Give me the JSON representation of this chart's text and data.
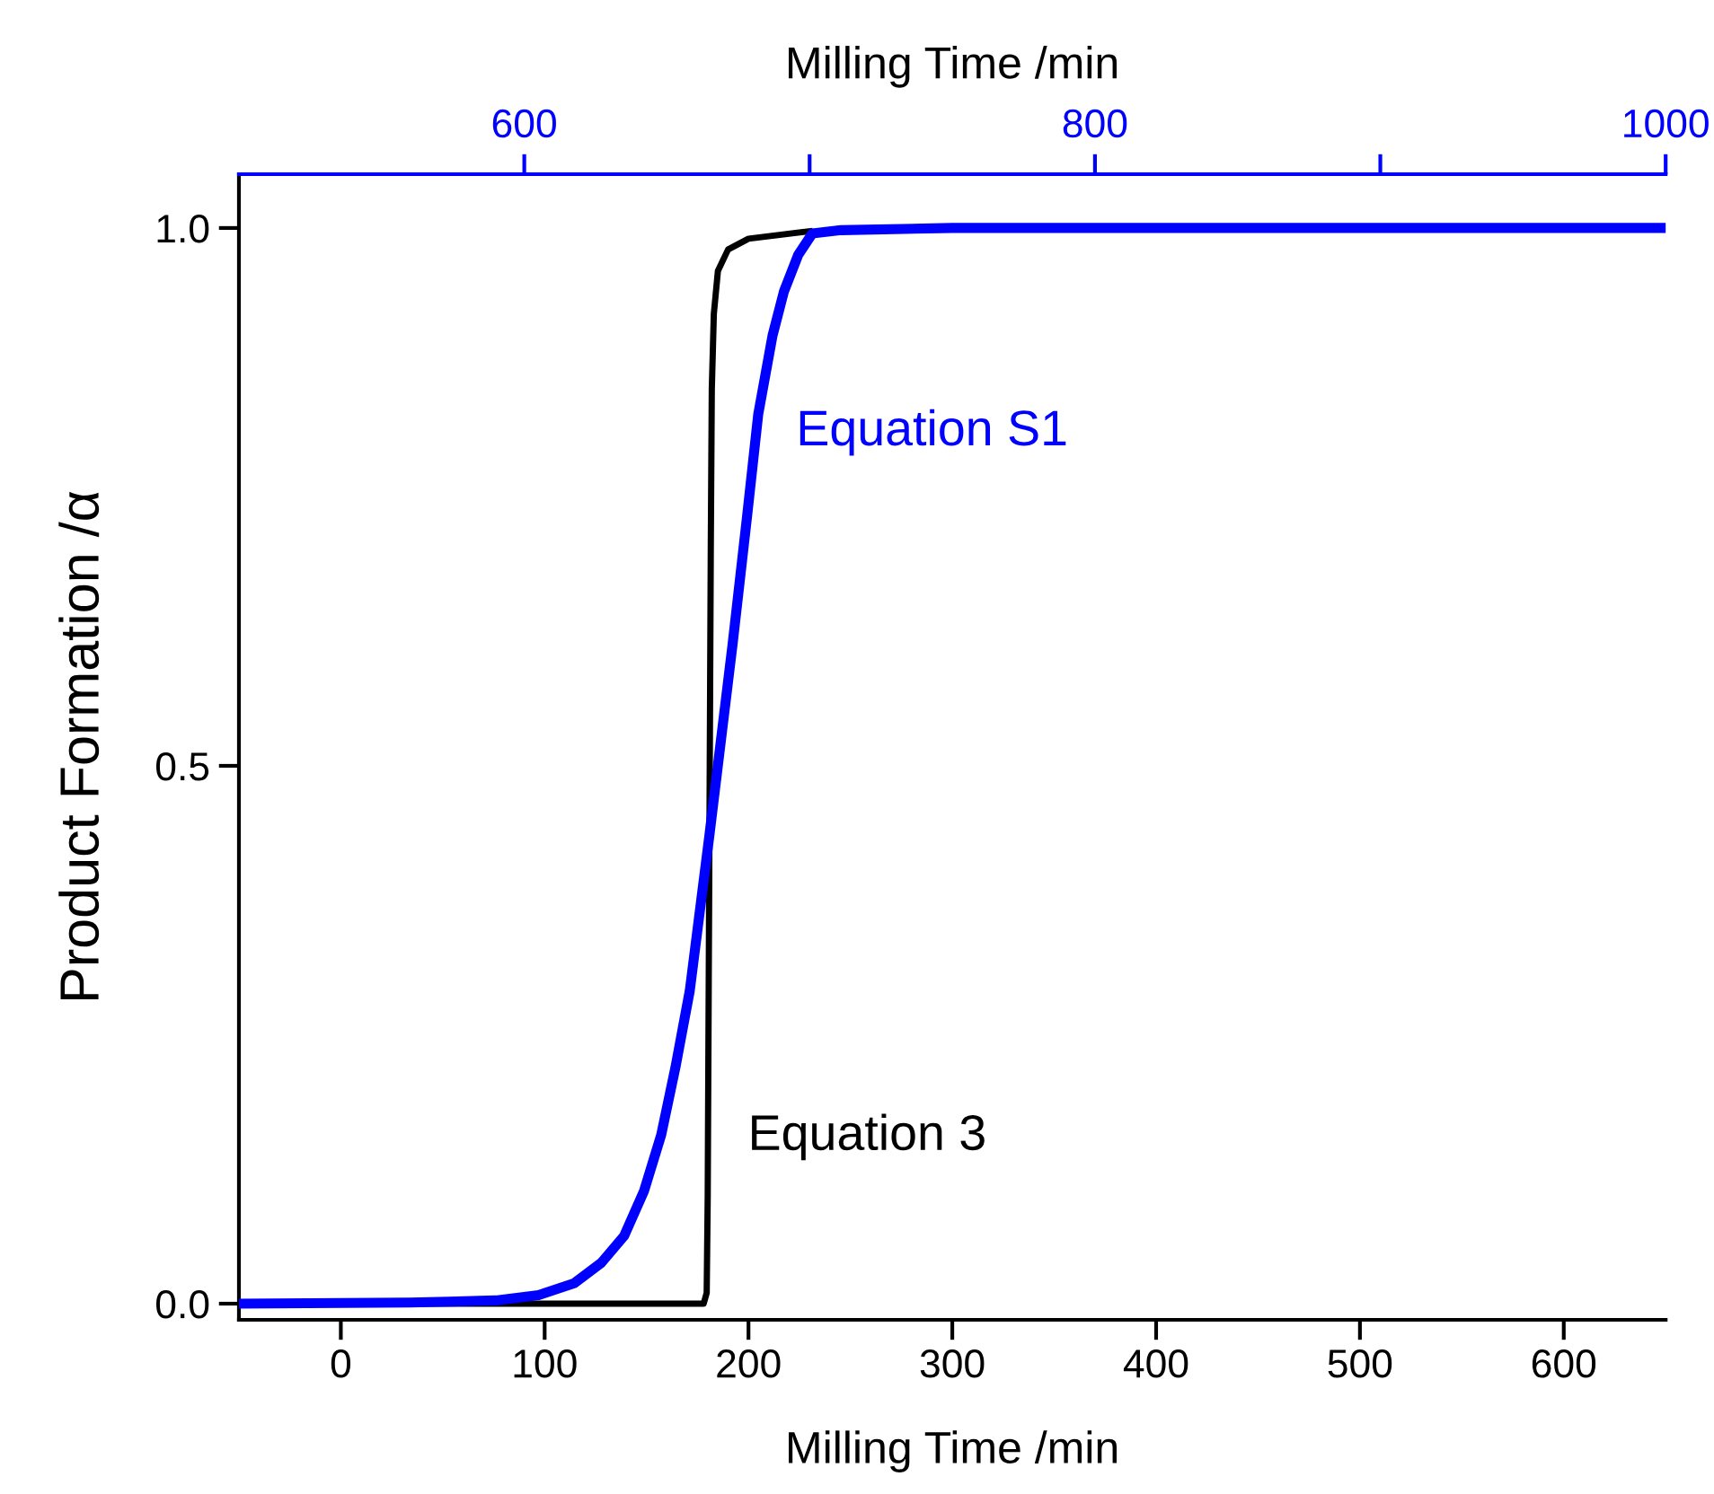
{
  "chart_data": {
    "type": "line",
    "xlabel": "Milling Time /min",
    "x2label": "Milling Time /min",
    "ylabel": "Product Formation /α",
    "xlim": [
      -50,
      650
    ],
    "xticks": [
      0,
      100,
      200,
      300,
      400,
      500,
      600
    ],
    "x2lim": [
      500,
      1000
    ],
    "x2ticks": [
      600,
      {
        "value": 700,
        "label": null
      },
      800,
      {
        "value": 900,
        "label": null
      },
      1000
    ],
    "ylim": [
      -0.015,
      1.05
    ],
    "yticks": [
      {
        "value": 0,
        "label": "0.0"
      },
      0.5,
      {
        "value": 1,
        "label": "1.0"
      }
    ],
    "grid": false,
    "legend": false,
    "marker": "none",
    "line_style": "solid",
    "series": [
      {
        "name": "Equation 3",
        "color": "#000000",
        "x": [
          -50,
          100,
          178,
          179.5,
          180,
          180.5,
          181,
          181.5,
          182,
          183,
          185,
          190,
          200,
          230
        ],
        "values": [
          0,
          0,
          0,
          0.01,
          0.1,
          0.3,
          0.5,
          0.7,
          0.85,
          0.92,
          0.96,
          0.98,
          0.99,
          0.997
        ]
      },
      {
        "name": "Equation S1",
        "color": "#0000ff",
        "axis": "x2",
        "x": [
          500,
          560,
          590,
          605,
          617.5,
          627,
          635,
          642,
          648,
          653,
          658,
          665,
          673,
          678,
          682,
          687,
          691,
          696,
          701,
          711,
          750,
          1000
        ],
        "values": [
          0,
          0.001,
          0.003,
          0.008,
          0.019,
          0.038,
          0.063,
          0.105,
          0.157,
          0.22,
          0.291,
          0.438,
          0.613,
          0.73,
          0.827,
          0.9,
          0.941,
          0.975,
          0.995,
          0.998,
          1,
          1
        ]
      }
    ]
  }
}
